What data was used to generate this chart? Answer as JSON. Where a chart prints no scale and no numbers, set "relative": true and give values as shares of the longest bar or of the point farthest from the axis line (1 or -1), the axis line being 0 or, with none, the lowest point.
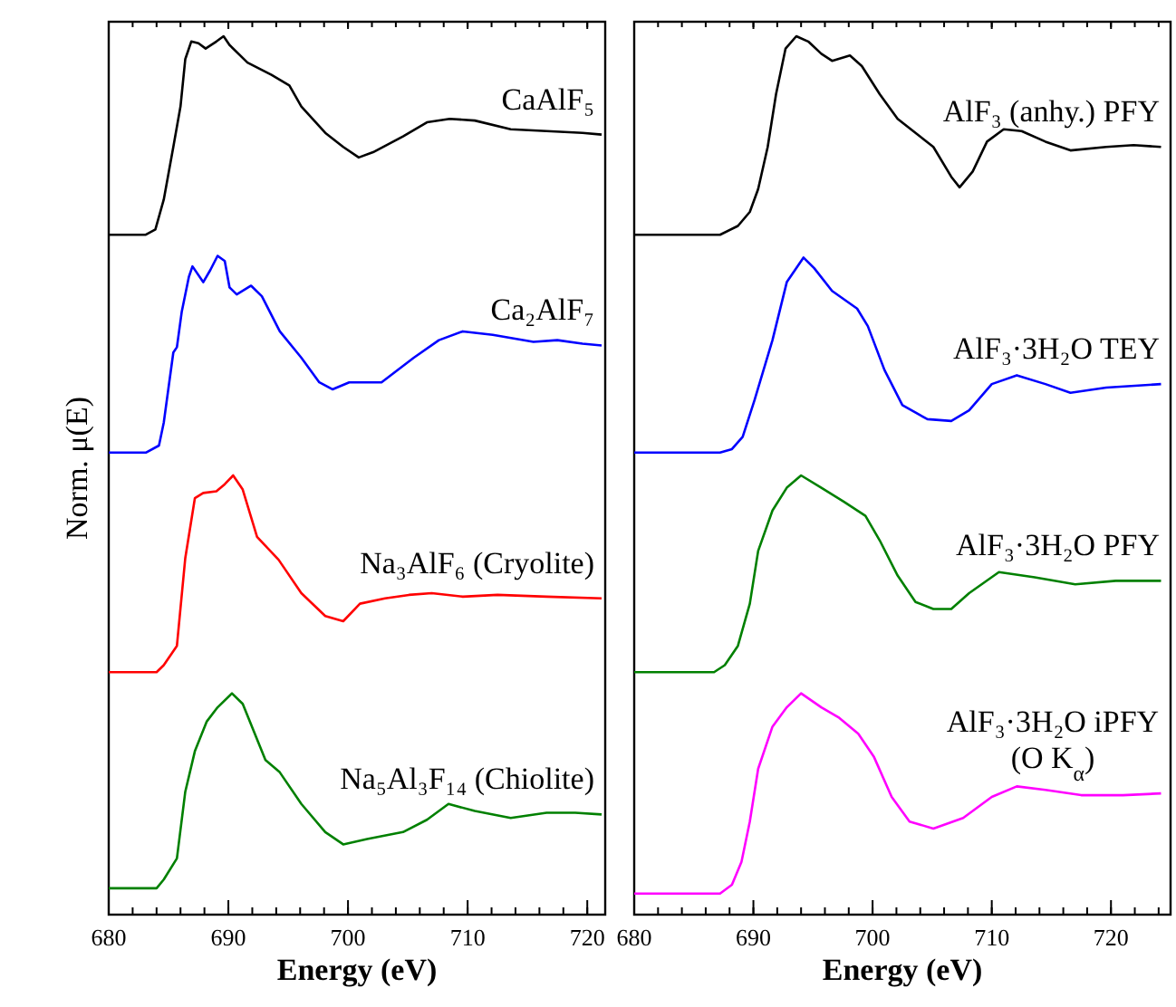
{
  "chart_data": [
    {
      "type": "line",
      "relative": true,
      "xlabel": "Energy (eV)",
      "ylabel": "Norm. μ(E)",
      "xlim": [
        680,
        721.5
      ],
      "xticks": [
        680,
        690,
        700,
        710,
        720
      ],
      "tick_labels": "x",
      "legend": false,
      "line_style": "solid",
      "series": [
        {
          "name": "CaAlF₅",
          "color": "#000000",
          "x": [
            680,
            683.1,
            683.9,
            684.6,
            685.4,
            686.0,
            686.4,
            686.9,
            687.5,
            688.1,
            689.0,
            689.6,
            690.1,
            691.6,
            693.6,
            695.1,
            696.1,
            698.1,
            699.6,
            700.9,
            702.1,
            704.6,
            706.6,
            708.5,
            710.6,
            713.6,
            716.6,
            719.6,
            721.2
          ],
          "values": [
            0.774,
            0.774,
            0.78,
            0.814,
            0.874,
            0.92,
            0.974,
            0.994,
            0.992,
            0.986,
            0.994,
            1,
            0.99,
            0.97,
            0.956,
            0.944,
            0.92,
            0.89,
            0.874,
            0.862,
            0.868,
            0.886,
            0.902,
            0.906,
            0.904,
            0.894,
            0.892,
            0.89,
            0.888
          ]
        },
        {
          "name": "Ca₂AlF₇",
          "color": "#0000ff",
          "x": [
            680,
            683.1,
            684.2,
            684.6,
            685.4,
            685.7,
            686.1,
            686.7,
            687.0,
            687.9,
            688.5,
            689.1,
            689.7,
            690.1,
            690.7,
            691.9,
            692.8,
            694.3,
            696.1,
            697.6,
            698.7,
            700.1,
            702.8,
            705.5,
            707.6,
            709.6,
            712.1,
            715.5,
            717.5,
            719.6,
            721.2
          ],
          "values": [
            0.526,
            0.526,
            0.534,
            0.56,
            0.64,
            0.646,
            0.686,
            0.726,
            0.738,
            0.72,
            0.734,
            0.75,
            0.744,
            0.714,
            0.706,
            0.716,
            0.704,
            0.664,
            0.634,
            0.606,
            0.598,
            0.606,
            0.606,
            0.634,
            0.654,
            0.664,
            0.66,
            0.652,
            0.654,
            0.65,
            0.648
          ]
        },
        {
          "name": "Na₃AlF₆ (Cryolite)",
          "color": "#ff0000",
          "x": [
            680,
            684.0,
            684.6,
            685.7,
            686.4,
            687.2,
            687.9,
            689.0,
            689.7,
            690.4,
            691.2,
            692.4,
            694.2,
            696.1,
            698.1,
            699.6,
            701.0,
            703.1,
            705.1,
            707.0,
            709.6,
            712.5,
            716.6,
            721.2
          ],
          "values": [
            0.276,
            0.276,
            0.284,
            0.306,
            0.406,
            0.474,
            0.48,
            0.482,
            0.49,
            0.5,
            0.484,
            0.43,
            0.404,
            0.366,
            0.34,
            0.334,
            0.354,
            0.36,
            0.364,
            0.366,
            0.362,
            0.364,
            0.362,
            0.36
          ]
        },
        {
          "name": "Na₅Al₃F₁₄ (Chiolite)",
          "color": "#008000",
          "x": [
            680,
            684.0,
            684.6,
            685.7,
            686.4,
            687.2,
            688.2,
            689.1,
            690.3,
            691.2,
            693.1,
            694.3,
            696.1,
            698.1,
            699.6,
            701.6,
            704.6,
            706.6,
            708.4,
            710.6,
            713.6,
            716.6,
            719.0,
            721.2
          ],
          "values": [
            0.03,
            0.03,
            0.04,
            0.064,
            0.14,
            0.186,
            0.22,
            0.236,
            0.252,
            0.24,
            0.176,
            0.162,
            0.126,
            0.094,
            0.08,
            0.086,
            0.094,
            0.108,
            0.126,
            0.118,
            0.11,
            0.116,
            0.116,
            0.114
          ]
        }
      ]
    },
    {
      "type": "line",
      "relative": true,
      "xlabel": "Energy (eV)",
      "xlim": [
        680,
        725
      ],
      "xticks": [
        680,
        690,
        700,
        710,
        720
      ],
      "tick_labels": "x",
      "legend": false,
      "line_style": "solid",
      "series": [
        {
          "name": "AlF₃ (anhy.) PFY",
          "color": "#000000",
          "x": [
            680,
            687.2,
            688.7,
            689.7,
            690.4,
            691.2,
            691.9,
            692.7,
            693.6,
            694.6,
            695.7,
            696.6,
            698.1,
            699.1,
            700.6,
            702.1,
            703.6,
            705.1,
            706.6,
            707.3,
            708.4,
            709.6,
            711.0,
            712.5,
            714.5,
            716.6,
            719.6,
            721.9,
            724.2
          ],
          "values": [
            0.774,
            0.774,
            0.784,
            0.8,
            0.826,
            0.874,
            0.934,
            0.986,
            1,
            0.994,
            0.98,
            0.972,
            0.978,
            0.966,
            0.934,
            0.906,
            0.89,
            0.874,
            0.84,
            0.828,
            0.846,
            0.88,
            0.894,
            0.892,
            0.88,
            0.87,
            0.874,
            0.876,
            0.874
          ]
        },
        {
          "name": "AlF₃·3H₂O TEY",
          "color": "#0000ff",
          "x": [
            680,
            687.2,
            688.2,
            689.1,
            690.1,
            691.6,
            692.8,
            694.2,
            695.1,
            696.6,
            698.7,
            699.6,
            701.0,
            702.5,
            704.6,
            706.6,
            708.1,
            710.0,
            712.1,
            714.5,
            716.6,
            719.6,
            724.2
          ],
          "values": [
            0.526,
            0.526,
            0.53,
            0.544,
            0.586,
            0.654,
            0.72,
            0.748,
            0.736,
            0.71,
            0.69,
            0.67,
            0.62,
            0.58,
            0.564,
            0.562,
            0.574,
            0.604,
            0.614,
            0.604,
            0.594,
            0.6,
            0.604
          ]
        },
        {
          "name": "AlF₃·3H₂O PFY",
          "color": "#008000",
          "x": [
            680,
            686.7,
            687.6,
            688.7,
            689.7,
            690.4,
            691.6,
            692.8,
            694.0,
            695.7,
            697.6,
            699.4,
            700.6,
            702.1,
            703.6,
            705.1,
            706.6,
            708.1,
            710.6,
            713.6,
            717.0,
            720.4,
            724.2
          ],
          "values": [
            0.276,
            0.276,
            0.284,
            0.306,
            0.354,
            0.414,
            0.46,
            0.486,
            0.5,
            0.486,
            0.47,
            0.454,
            0.426,
            0.386,
            0.356,
            0.348,
            0.348,
            0.366,
            0.39,
            0.384,
            0.376,
            0.38,
            0.38
          ]
        },
        {
          "name": "AlF₃·3H₂O iPFY (O K$_{α}$)",
          "color": "#ff00ff",
          "x": [
            680,
            687.2,
            688.2,
            689.0,
            689.7,
            690.4,
            691.6,
            692.8,
            694.0,
            695.7,
            697.2,
            698.8,
            700.1,
            701.6,
            703.1,
            705.1,
            707.6,
            710.0,
            712.1,
            714.5,
            717.5,
            721.0,
            724.2
          ],
          "values": [
            0.024,
            0.024,
            0.034,
            0.06,
            0.106,
            0.166,
            0.214,
            0.236,
            0.252,
            0.236,
            0.224,
            0.206,
            0.18,
            0.134,
            0.106,
            0.098,
            0.11,
            0.134,
            0.146,
            0.142,
            0.136,
            0.136,
            0.138
          ]
        }
      ]
    }
  ]
}
